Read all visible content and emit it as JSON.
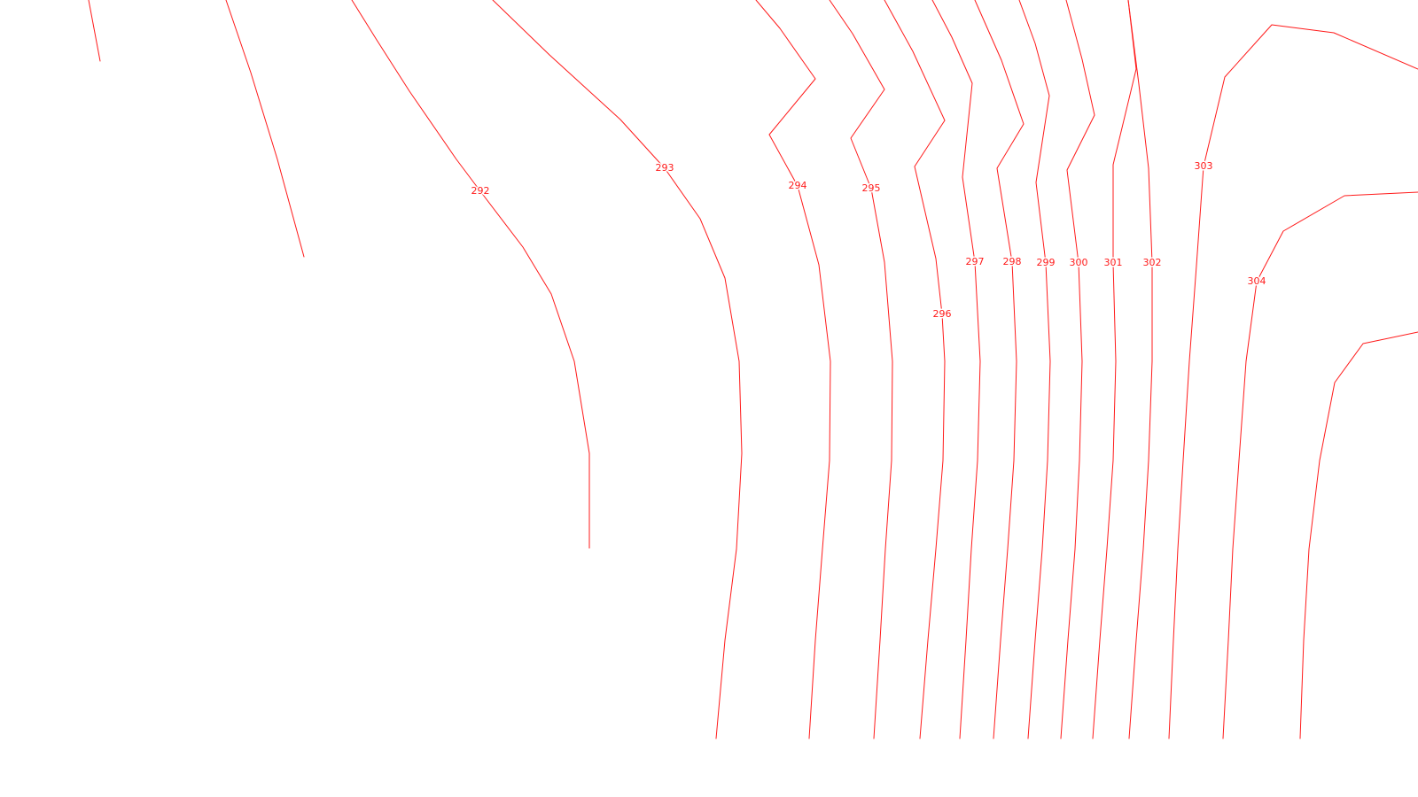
{
  "map": {
    "line_color": "#ff1a1a",
    "background": "#ffffff",
    "contours": [
      {
        "id": "c-unl-a",
        "elev": ""
      },
      {
        "id": "c-unl-b",
        "elev": ""
      },
      {
        "id": "c292",
        "elev": "292"
      },
      {
        "id": "c293",
        "elev": "293"
      },
      {
        "id": "c294",
        "elev": "294"
      },
      {
        "id": "c295",
        "elev": "295"
      },
      {
        "id": "c296",
        "elev": "296"
      },
      {
        "id": "c297",
        "elev": "297"
      },
      {
        "id": "c298",
        "elev": "298"
      },
      {
        "id": "c299",
        "elev": "299"
      },
      {
        "id": "c300",
        "elev": "300"
      },
      {
        "id": "c301",
        "elev": "301"
      },
      {
        "id": "c302",
        "elev": "302"
      },
      {
        "id": "c303",
        "elev": "303"
      },
      {
        "id": "c304",
        "elev": "304"
      }
    ]
  }
}
